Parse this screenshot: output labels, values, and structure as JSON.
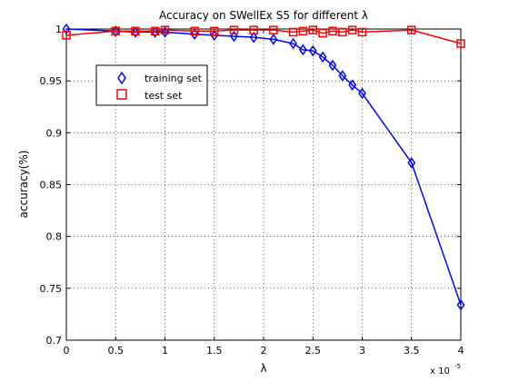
{
  "chart_data": {
    "type": "line",
    "title": "Accuracy on SWellEx S5 for different λ",
    "xlabel": "λ",
    "ylabel": "accuracy(%)",
    "x_exponent_base": "x 10",
    "x_exponent_power": "-5",
    "xlim": [
      0,
      4
    ],
    "ylim": [
      0.7,
      1
    ],
    "xticks": [
      0,
      0.5,
      1,
      1.5,
      2,
      2.5,
      3,
      3.5,
      4
    ],
    "xtick_labels": [
      "0",
      "0.5",
      "1",
      "1.5",
      "2",
      "2.5",
      "3",
      "3.5",
      "4"
    ],
    "yticks": [
      0.7,
      0.75,
      0.8,
      0.85,
      0.9,
      0.95,
      1
    ],
    "ytick_labels": [
      "0.7",
      "0.75",
      "0.8",
      "0.85",
      "0.9",
      "0.95",
      "1"
    ],
    "grid": true,
    "legend_position": "upper-left",
    "series": [
      {
        "name": "training set",
        "color": "#0000ff",
        "marker": "diamond",
        "x": [
          0,
          0.5,
          0.7,
          0.9,
          1.0,
          1.3,
          1.5,
          1.7,
          1.9,
          2.1,
          2.3,
          2.4,
          2.5,
          2.6,
          2.7,
          2.8,
          2.9,
          3.0,
          3.5,
          4.0
        ],
        "y": [
          1.0,
          0.998,
          0.997,
          0.997,
          0.997,
          0.995,
          0.994,
          0.993,
          0.992,
          0.99,
          0.986,
          0.98,
          0.979,
          0.973,
          0.965,
          0.955,
          0.946,
          0.938,
          0.871,
          0.734
        ]
      },
      {
        "name": "test set",
        "color": "#ff0000",
        "marker": "square",
        "x": [
          0,
          0.5,
          0.7,
          0.9,
          1.0,
          1.3,
          1.5,
          1.7,
          1.9,
          2.1,
          2.3,
          2.4,
          2.5,
          2.6,
          2.7,
          2.8,
          2.9,
          3.0,
          3.5,
          4.0
        ],
        "y": [
          0.994,
          0.998,
          0.998,
          0.998,
          0.999,
          0.998,
          0.998,
          0.999,
          0.999,
          0.999,
          0.997,
          0.998,
          0.999,
          0.996,
          0.998,
          0.997,
          0.999,
          0.997,
          0.999,
          0.986
        ]
      }
    ]
  }
}
